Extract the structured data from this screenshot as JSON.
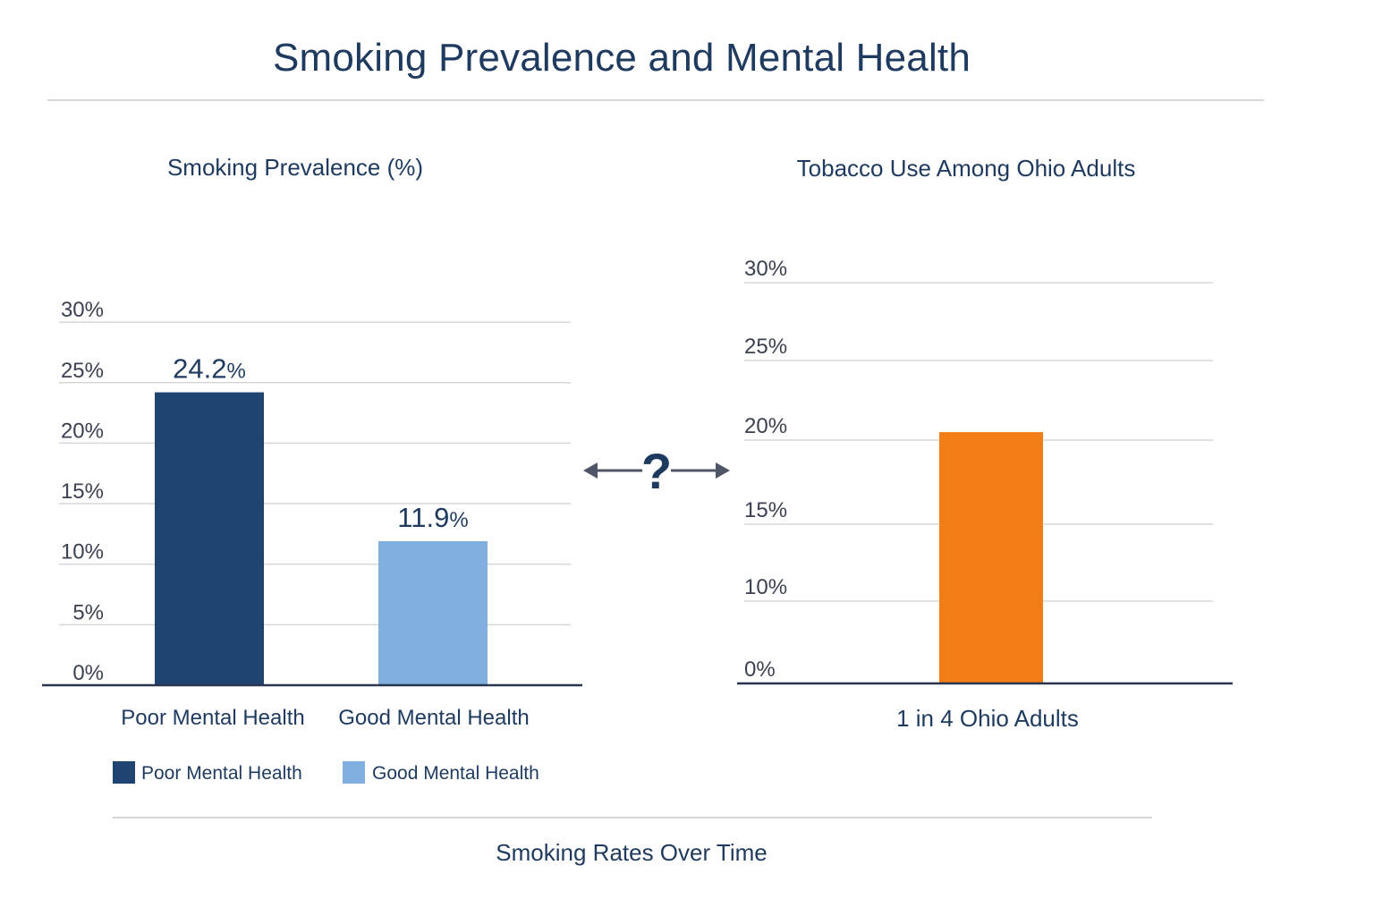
{
  "page": {
    "title": "Smoking Prevalence and Mental Health",
    "footer_title": "Smoking Rates Over Time",
    "connector_symbol": "?"
  },
  "colors": {
    "title": "#1e3a5f",
    "poor": "#1f4471",
    "good": "#7fb0e0",
    "ohio": "#f27c16",
    "grid": "#d4d8dc",
    "axis": "#2a3550",
    "tick_text": "#3a4150",
    "arrow": "#4d5566"
  },
  "chart_data": [
    {
      "type": "bar",
      "title": "Smoking Prevalence (%)",
      "categories": [
        "Poor Mental Health",
        "Good Mental Health"
      ],
      "values": [
        24.2,
        11.9
      ],
      "data_labels": [
        "24.2",
        "11.9"
      ],
      "label_unit": "%",
      "yticks": [
        0,
        5,
        10,
        15,
        20,
        25,
        30
      ],
      "ytick_labels": [
        "0%",
        "5%",
        "10%",
        "15%",
        "20%",
        "25%",
        "30%"
      ],
      "ylim": [
        0,
        30
      ],
      "grid": true,
      "legend": [
        {
          "label": "Poor Mental Health",
          "color": "#1f4471"
        },
        {
          "label": "Good Mental Health",
          "color": "#7fb0e0"
        }
      ],
      "legend_position": "bottom-left"
    },
    {
      "type": "bar",
      "title": "Tobacco Use Among Ohio Adults",
      "categories": [
        "1 in 4 Ohio Adults"
      ],
      "values": [
        20.5
      ],
      "yticks": [
        0,
        10,
        15,
        20,
        25,
        30
      ],
      "ytick_labels": [
        "0%",
        "10%",
        "15%",
        "20%",
        "25%",
        "30%"
      ],
      "ylim": [
        0,
        30
      ],
      "grid": true
    }
  ]
}
